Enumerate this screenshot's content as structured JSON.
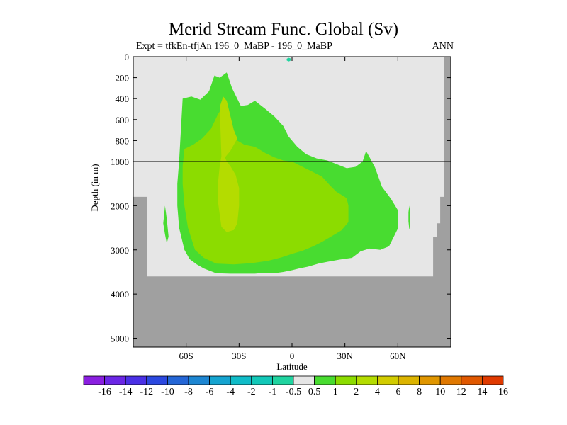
{
  "chart_data": {
    "type": "filled-contour",
    "title": "Merid Stream Func. Global (Sv)",
    "subtitle_left": "Expt = tfkEn-tfjAn  196_0_MaBP - 196_0_MaBP",
    "subtitle_right": "ANN",
    "xlabel": "Latitude",
    "ylabel": "Depth (in m)",
    "xlim": [
      -90,
      90
    ],
    "x_ticks": [
      {
        "value": -60,
        "label": "60S"
      },
      {
        "value": -30,
        "label": "30S"
      },
      {
        "value": 0,
        "label": "0"
      },
      {
        "value": 30,
        "label": "30N"
      },
      {
        "value": 60,
        "label": "60N"
      }
    ],
    "y_ticks_upper": [
      {
        "value": 0,
        "label": "0"
      },
      {
        "value": 200,
        "label": "200"
      },
      {
        "value": 400,
        "label": "400"
      },
      {
        "value": 600,
        "label": "600"
      },
      {
        "value": 800,
        "label": "800"
      },
      {
        "value": 1000,
        "label": "1000"
      }
    ],
    "y_ticks_lower": [
      {
        "value": 2000,
        "label": "2000"
      },
      {
        "value": 3000,
        "label": "3000"
      },
      {
        "value": 4000,
        "label": "4000"
      },
      {
        "value": 5000,
        "label": "5000"
      }
    ],
    "ylim": [
      0,
      5200
    ],
    "depth_axis_break": 1000,
    "land_color": "#a0a0a0",
    "background_color": "#e6e6e6",
    "colorbar": {
      "labels": [
        "-16",
        "-14",
        "-12",
        "-10",
        "-8",
        "-6",
        "-4",
        "-2",
        "-1",
        "-0.5",
        "0.5",
        "1",
        "2",
        "4",
        "6",
        "8",
        "10",
        "12",
        "14",
        "16"
      ],
      "colors": [
        "#8a1fe0",
        "#6b26e6",
        "#4a30e6",
        "#2b48e0",
        "#2466d6",
        "#1d86d2",
        "#15a4d0",
        "#10bcc8",
        "#12c8b8",
        "#20d4a0",
        "#e6e6e6",
        "#48dc30",
        "#8cdc00",
        "#b4dc00",
        "#d2cc00",
        "#dcb400",
        "#e09600",
        "#e07800",
        "#e05800",
        "#e03a00"
      ]
    },
    "regions": [
      {
        "name": "0.5 to 1 Sv",
        "color": "#48dc30",
        "outline": [
          [
            -62,
            400
          ],
          [
            -57,
            380
          ],
          [
            -52,
            410
          ],
          [
            -47,
            330
          ],
          [
            -44,
            180
          ],
          [
            -41,
            200
          ],
          [
            -37,
            150
          ],
          [
            -34,
            300
          ],
          [
            -29,
            470
          ],
          [
            -25,
            460
          ],
          [
            -21,
            420
          ],
          [
            -15,
            500
          ],
          [
            -10,
            570
          ],
          [
            -5,
            660
          ],
          [
            -2,
            760
          ],
          [
            3,
            860
          ],
          [
            8,
            930
          ],
          [
            14,
            970
          ],
          [
            20,
            990
          ],
          [
            26,
            1070
          ],
          [
            31,
            1150
          ],
          [
            36,
            1120
          ],
          [
            40,
            1000
          ],
          [
            42,
            900
          ],
          [
            44,
            960
          ],
          [
            47,
            1130
          ],
          [
            51,
            1570
          ],
          [
            56,
            1840
          ],
          [
            60,
            2100
          ],
          [
            60,
            2520
          ],
          [
            55,
            2920
          ],
          [
            50,
            3000
          ],
          [
            44,
            2970
          ],
          [
            39,
            3030
          ],
          [
            34,
            3180
          ],
          [
            27,
            3220
          ],
          [
            20,
            3270
          ],
          [
            15,
            3310
          ],
          [
            9,
            3380
          ],
          [
            4,
            3420
          ],
          [
            0,
            3460
          ],
          [
            -5,
            3500
          ],
          [
            -10,
            3530
          ],
          [
            -16,
            3520
          ],
          [
            -21,
            3540
          ],
          [
            -29,
            3540
          ],
          [
            -35,
            3540
          ],
          [
            -43,
            3530
          ],
          [
            -50,
            3420
          ],
          [
            -54,
            3330
          ],
          [
            -58,
            3210
          ],
          [
            -61,
            3000
          ],
          [
            -64,
            2500
          ],
          [
            -65,
            2000
          ],
          [
            -65,
            1500
          ],
          [
            -64,
            1000
          ],
          [
            -63,
            700
          ]
        ]
      },
      {
        "name": "1 to 2 Sv",
        "color": "#8cdc00",
        "outline": [
          [
            -61,
            880
          ],
          [
            -56,
            840
          ],
          [
            -51,
            780
          ],
          [
            -46,
            690
          ],
          [
            -42,
            550
          ],
          [
            -39,
            470
          ],
          [
            -36,
            570
          ],
          [
            -31,
            800
          ],
          [
            -27,
            840
          ],
          [
            -21,
            860
          ],
          [
            -15,
            920
          ],
          [
            -10,
            960
          ],
          [
            -5,
            990
          ],
          [
            0,
            1000
          ],
          [
            5,
            1100
          ],
          [
            11,
            1220
          ],
          [
            17,
            1340
          ],
          [
            21,
            1520
          ],
          [
            25,
            1680
          ],
          [
            31,
            1830
          ],
          [
            32,
            2000
          ],
          [
            32,
            2370
          ],
          [
            28,
            2560
          ],
          [
            23,
            2680
          ],
          [
            17,
            2820
          ],
          [
            12,
            2920
          ],
          [
            6,
            3020
          ],
          [
            0,
            3090
          ],
          [
            -6,
            3170
          ],
          [
            -14,
            3250
          ],
          [
            -23,
            3300
          ],
          [
            -33,
            3330
          ],
          [
            -43,
            3310
          ],
          [
            -50,
            3180
          ],
          [
            -55,
            3000
          ],
          [
            -59,
            2500
          ],
          [
            -61,
            2000
          ],
          [
            -62,
            1500
          ],
          [
            -62,
            1100
          ]
        ]
      },
      {
        "name": "2 to 4 Sv",
        "color": "#b4dc00",
        "outline": [
          [
            -41,
            480
          ],
          [
            -39,
            380
          ],
          [
            -37,
            420
          ],
          [
            -35,
            560
          ],
          [
            -33,
            700
          ],
          [
            -31,
            780
          ],
          [
            -35,
            900
          ],
          [
            -38,
            960
          ],
          [
            -37,
            1000
          ],
          [
            -35,
            1100
          ],
          [
            -32,
            1300
          ],
          [
            -30,
            1600
          ],
          [
            -30,
            2000
          ],
          [
            -31,
            2400
          ],
          [
            -33,
            2550
          ],
          [
            -37,
            2600
          ],
          [
            -40,
            2480
          ],
          [
            -41,
            2200
          ],
          [
            -42,
            1900
          ],
          [
            -42,
            1500
          ],
          [
            -41,
            1100
          ],
          [
            -40,
            950
          ]
        ]
      },
      {
        "name": "-0.5 to -1 Sv patch",
        "color": "#20d4a0",
        "outline": [
          [
            -3,
            20
          ],
          [
            -2,
            10
          ],
          [
            -1,
            15
          ],
          [
            -0.5,
            25
          ],
          [
            -1,
            40
          ],
          [
            -2,
            45
          ],
          [
            -3,
            35
          ]
        ]
      },
      {
        "name": "Antarctic 0.5 to 1 Sv",
        "color": "#48dc30",
        "outline": [
          [
            -72,
            2000
          ],
          [
            -71,
            2300
          ],
          [
            -70,
            2700
          ],
          [
            -71,
            2850
          ],
          [
            -72,
            2650
          ],
          [
            -73,
            2400
          ],
          [
            -72.5,
            2200
          ]
        ]
      },
      {
        "name": "Arctic 0.5 to 1 Sv",
        "color": "#48dc30",
        "outline": [
          [
            66.5,
            2000
          ],
          [
            67,
            2200
          ],
          [
            67,
            2450
          ],
          [
            66.5,
            2540
          ],
          [
            66,
            2350
          ],
          [
            66,
            2150
          ]
        ]
      }
    ],
    "bathymetry": [
      [
        -90,
        5200
      ],
      [
        -90,
        1800
      ],
      [
        -82,
        1800
      ],
      [
        -82,
        3600
      ],
      [
        80,
        3600
      ],
      [
        80,
        2700
      ],
      [
        82,
        2700
      ],
      [
        82,
        2400
      ],
      [
        84,
        2400
      ],
      [
        84,
        1800
      ],
      [
        86,
        1800
      ],
      [
        86,
        0
      ],
      [
        90,
        0
      ],
      [
        90,
        5200
      ]
    ]
  }
}
